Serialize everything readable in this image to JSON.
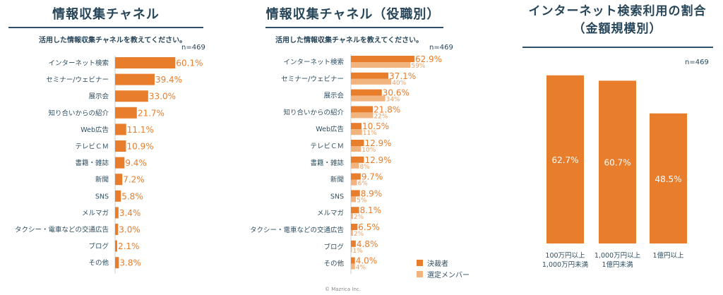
{
  "colors": {
    "primary": "#e87d2c",
    "secondary": "#f2b47f"
  },
  "chart1": {
    "title": "情報収集チャネル",
    "question": "活用した情報収集チャネルを教えてください。",
    "n": "n=469"
  },
  "chart2": {
    "title": "情報収集チャネル（役職別）",
    "question": "活用した情報収集チャネルを教えてください。",
    "n": "n=469",
    "legend": [
      "決裁者",
      "選定メンバー"
    ]
  },
  "chart3": {
    "title_line1": "インターネット検索利用の割合",
    "title_line2": "（金額規模別）",
    "n": "n=469"
  },
  "copyright": "© Mazrica Inc.",
  "chart_data": [
    {
      "type": "bar",
      "orientation": "horizontal",
      "title": "情報収集チャネル",
      "categories": [
        "インターネット検索",
        "セミナー/ウェビナー",
        "展示会",
        "知り合いからの紹介",
        "Web広告",
        "テレビＣＭ",
        "書籍・雑誌",
        "新聞",
        "SNS",
        "メルマガ",
        "タクシー・電車などの交通広告",
        "ブログ",
        "その他"
      ],
      "values": [
        60.1,
        39.4,
        33.0,
        21.7,
        11.1,
        10.9,
        9.4,
        7.2,
        5.8,
        3.4,
        3.0,
        2.1,
        3.8
      ],
      "labels": [
        "60.1%",
        "39.4%",
        "33.0%",
        "21.7%",
        "11.1%",
        "10.9%",
        "9.4%",
        "7.2%",
        "5.8%",
        "3.4%",
        "3.0%",
        "2.1%",
        "3.8%"
      ]
    },
    {
      "type": "bar",
      "orientation": "horizontal",
      "title": "情報収集チャネル（役職別）",
      "categories": [
        "インターネット検索",
        "セミナー/ウェビナー",
        "展示会",
        "知り合いからの紹介",
        "Web広告",
        "テレビＣＭ",
        "書籍・雑誌",
        "新聞",
        "SNS",
        "メルマガ",
        "タクシー・電車などの交通広告",
        "ブログ",
        "その他"
      ],
      "series": [
        {
          "name": "決裁者",
          "values": [
            62.9,
            37.1,
            30.6,
            21.8,
            10.5,
            12.9,
            12.9,
            9.7,
            8.9,
            8.1,
            6.5,
            4.8,
            4.0
          ],
          "labels": [
            "62.9%",
            "37.1%",
            "30.6%",
            "21.8%",
            "10.5%",
            "12.9%",
            "12.9%",
            "9.7%",
            "8.9%",
            "8.1%",
            "6.5%",
            "4.8%",
            "4.0%"
          ]
        },
        {
          "name": "選定メンバー",
          "values": [
            59,
            40,
            34,
            22,
            11,
            10,
            8,
            6,
            5,
            2,
            2,
            1,
            4
          ],
          "labels": [
            "59%",
            "40%",
            "34%",
            "22%",
            "11%",
            "10%",
            "8%",
            "6%",
            "5%",
            "2%",
            "2%",
            "1%",
            "4%"
          ]
        }
      ]
    },
    {
      "type": "bar",
      "orientation": "vertical",
      "title": "インターネット検索利用の割合（金額規模別）",
      "categories": [
        [
          "100万円以上",
          "1,000万円未満"
        ],
        [
          "1,000万円以上",
          "1億円未満"
        ],
        [
          "1億円以上"
        ]
      ],
      "values": [
        62.7,
        60.7,
        48.5
      ],
      "labels": [
        "62.7%",
        "60.7%",
        "48.5%"
      ]
    }
  ]
}
